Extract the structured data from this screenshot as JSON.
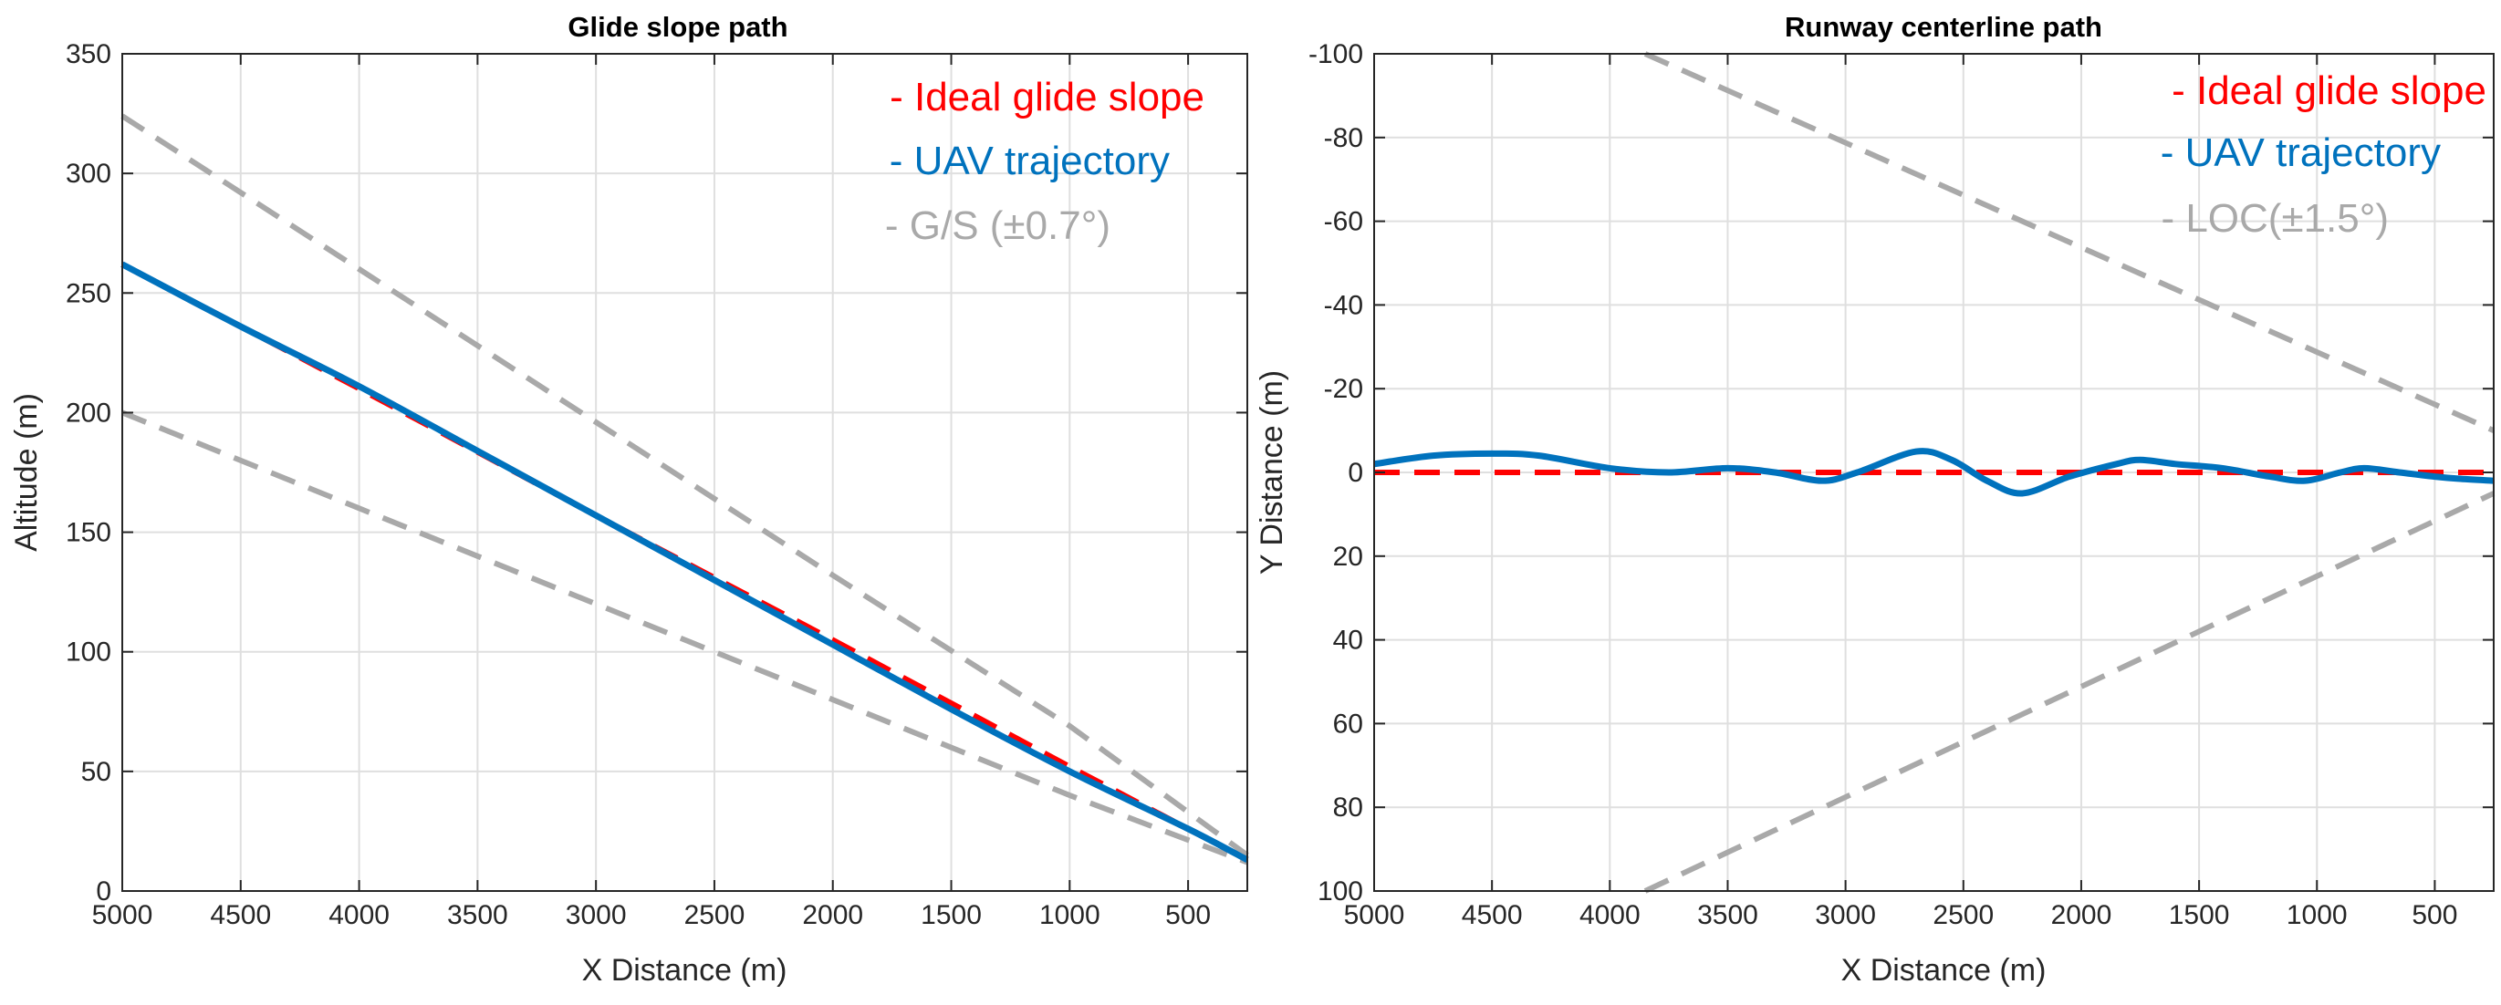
{
  "chart_data": [
    {
      "type": "line",
      "title": "Glide slope path",
      "xlabel": "X Distance (m)",
      "ylabel": "Altitude (m)",
      "xlim": [
        5000,
        250
      ],
      "ylim": [
        0,
        350
      ],
      "x_reversed": true,
      "y_reversed": false,
      "xticks": [
        5000,
        4500,
        4000,
        3500,
        3000,
        2500,
        2000,
        1500,
        1000,
        500
      ],
      "xtick_labels": [
        "5000",
        "4500",
        "4000",
        "3500",
        "3000",
        "2500",
        "2000",
        "1500",
        "1000",
        "500"
      ],
      "yticks": [
        0,
        50,
        100,
        150,
        200,
        250,
        300,
        350
      ],
      "ytick_labels": [
        "0",
        "50",
        "100",
        "150",
        "200",
        "250",
        "300",
        "350"
      ],
      "grid": true,
      "legend_position": "top-right",
      "series": [
        {
          "name": "- Ideal glide slope",
          "color": "#ff0000",
          "style": "dashed",
          "x": [
            5000,
            4000,
            3000,
            2000,
            1000,
            250
          ],
          "y": [
            262,
            210,
            157,
            105,
            52,
            13
          ]
        },
        {
          "name": "- UAV trajectory",
          "color": "#0072bd",
          "style": "solid",
          "x": [
            5000,
            4500,
            4000,
            3500,
            3000,
            2500,
            2000,
            1500,
            1000,
            500,
            250
          ],
          "y": [
            262,
            236,
            211,
            184,
            157,
            130,
            103,
            76,
            50,
            26,
            13
          ]
        },
        {
          "name": "- G/S (±0.7°)",
          "color": "#a9a9a9",
          "style": "dashed",
          "x": [
            5000,
            4000,
            3000,
            2000,
            1000,
            250
          ],
          "y": [
            324,
            260,
            196,
            132,
            69,
            15
          ]
        },
        {
          "name": "",
          "color": "#a9a9a9",
          "style": "dashed",
          "x": [
            5000,
            4000,
            3000,
            2000,
            1000,
            250
          ],
          "y": [
            200,
            160,
            120,
            80,
            40,
            12
          ]
        }
      ]
    },
    {
      "type": "line",
      "title": "Runway centerline path",
      "xlabel": "X Distance (m)",
      "ylabel": "Y Distance (m)",
      "xlim": [
        5000,
        250
      ],
      "ylim": [
        -100,
        100
      ],
      "x_reversed": true,
      "y_reversed": true,
      "xticks": [
        5000,
        4500,
        4000,
        3500,
        3000,
        2500,
        2000,
        1500,
        1000,
        500
      ],
      "xtick_labels": [
        "5000",
        "4500",
        "4000",
        "3500",
        "3000",
        "2500",
        "2000",
        "1500",
        "1000",
        "500"
      ],
      "yticks": [
        -100,
        -80,
        -60,
        -40,
        -20,
        0,
        20,
        40,
        60,
        80,
        100
      ],
      "ytick_labels": [
        "-100",
        "-80",
        "-60",
        "-40",
        "-20",
        "0",
        "20",
        "40",
        "60",
        "80",
        "100"
      ],
      "grid": true,
      "legend_position": "top-right",
      "series": [
        {
          "name": "- Ideal glide slope",
          "color": "#ff0000",
          "style": "dashed",
          "x": [
            5000,
            250
          ],
          "y": [
            0,
            0
          ]
        },
        {
          "name": "- UAV trajectory",
          "color": "#0072bd",
          "style": "solid",
          "x": [
            5000,
            4750,
            4500,
            4300,
            4000,
            3750,
            3500,
            3300,
            3100,
            2950,
            2700,
            2550,
            2400,
            2250,
            2050,
            1850,
            1750,
            1600,
            1400,
            1200,
            1050,
            900,
            800,
            650,
            500,
            400,
            250
          ],
          "y": [
            -2,
            -4,
            -4.5,
            -4,
            -1,
            0,
            -1,
            0,
            2,
            0,
            -5,
            -3,
            2,
            5,
            1,
            -2,
            -3,
            -2,
            -1,
            1,
            2,
            0,
            -1,
            0,
            1,
            1.5,
            2
          ]
        },
        {
          "name": "- LOC(±1.5°)",
          "color": "#a9a9a9",
          "style": "dashed",
          "x": [
            3850,
            250
          ],
          "y": [
            -100,
            -10
          ]
        },
        {
          "name": "",
          "color": "#a9a9a9",
          "style": "dashed",
          "x": [
            3850,
            250
          ],
          "y": [
            100,
            5
          ]
        }
      ]
    }
  ]
}
